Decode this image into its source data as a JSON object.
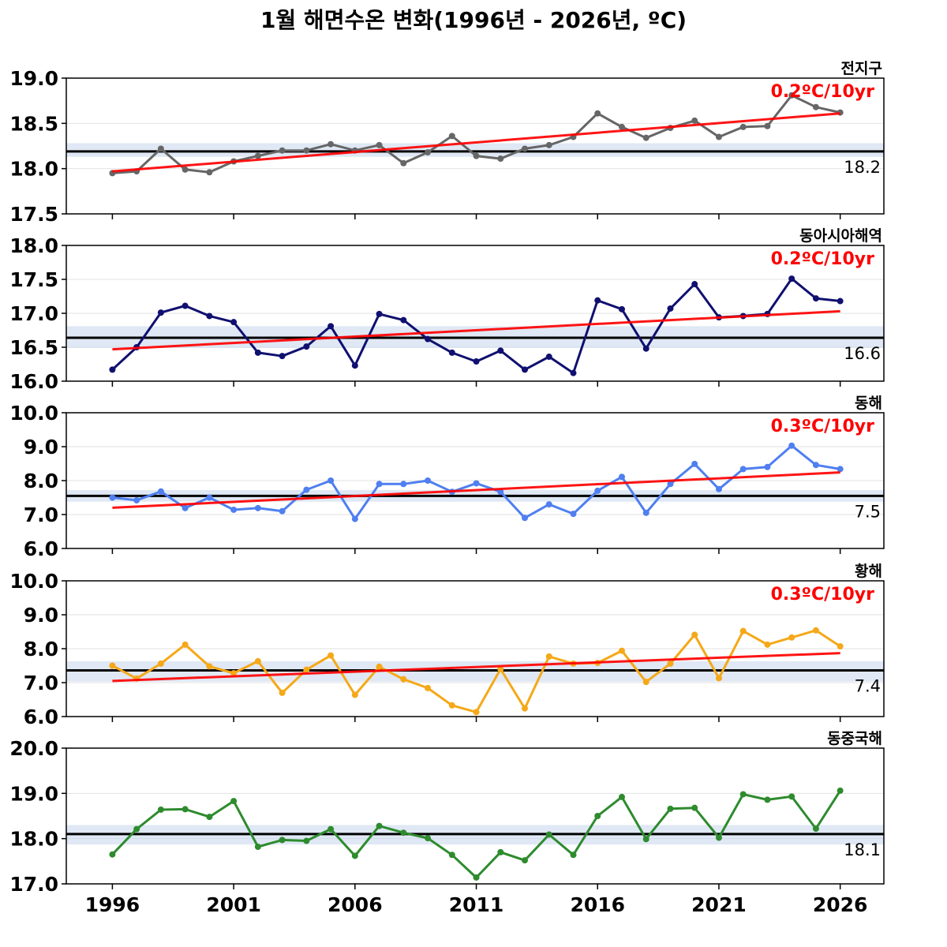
{
  "title": "1월 해면수온 변화(1996년 - 2026년, ºC)",
  "chart_data": [
    {
      "type": "line",
      "region": "전지구",
      "trend_label": "0.2ºC/10yr",
      "mean_label": "18.2",
      "mean": 18.19,
      "band": [
        18.13,
        18.28
      ],
      "ylim": [
        17.5,
        19.0
      ],
      "yticks": [
        "17.5",
        "18.0",
        "18.5",
        "19.0"
      ],
      "color": "#666666",
      "trend": [
        17.97,
        18.61
      ],
      "x": [
        1996,
        1997,
        1998,
        1999,
        2000,
        2001,
        2002,
        2003,
        2004,
        2005,
        2006,
        2007,
        2008,
        2009,
        2010,
        2011,
        2012,
        2013,
        2014,
        2015,
        2016,
        2017,
        2018,
        2019,
        2020,
        2021,
        2022,
        2023,
        2024,
        2025,
        2026
      ],
      "values": [
        17.95,
        17.97,
        18.22,
        17.99,
        17.96,
        18.08,
        18.14,
        18.2,
        18.2,
        18.27,
        18.2,
        18.26,
        18.06,
        18.18,
        18.36,
        18.14,
        18.11,
        18.22,
        18.26,
        18.35,
        18.61,
        18.46,
        18.34,
        18.45,
        18.53,
        18.35,
        18.46,
        18.47,
        18.81,
        18.68,
        18.62
      ]
    },
    {
      "type": "line",
      "region": "동아시아해역",
      "trend_label": "0.2ºC/10yr",
      "mean_label": "16.6",
      "mean": 16.64,
      "band": [
        16.49,
        16.81
      ],
      "ylim": [
        16.0,
        18.0
      ],
      "yticks": [
        "16.0",
        "16.5",
        "17.0",
        "17.5",
        "18.0"
      ],
      "color": "#101070",
      "trend": [
        16.47,
        17.03
      ],
      "x": [
        1996,
        1997,
        1998,
        1999,
        2000,
        2001,
        2002,
        2003,
        2004,
        2005,
        2006,
        2007,
        2008,
        2009,
        2010,
        2011,
        2012,
        2013,
        2014,
        2015,
        2016,
        2017,
        2018,
        2019,
        2020,
        2021,
        2022,
        2023,
        2024,
        2025,
        2026
      ],
      "values": [
        16.17,
        16.5,
        17.01,
        17.11,
        16.96,
        16.87,
        16.42,
        16.37,
        16.51,
        16.81,
        16.23,
        16.99,
        16.9,
        16.62,
        16.42,
        16.29,
        16.45,
        16.17,
        16.36,
        16.12,
        17.19,
        17.06,
        16.48,
        17.07,
        17.43,
        16.94,
        16.96,
        16.99,
        17.51,
        17.22,
        17.18
      ]
    },
    {
      "type": "line",
      "region": "동해",
      "trend_label": "0.3ºC/10yr",
      "mean_label": "7.5",
      "mean": 7.55,
      "band": [
        7.38,
        7.72
      ],
      "ylim": [
        6.0,
        10.0
      ],
      "yticks": [
        "6.0",
        "7.0",
        "8.0",
        "9.0",
        "10.0"
      ],
      "color": "#4f7ff0",
      "trend": [
        7.2,
        8.24
      ],
      "x": [
        1996,
        1997,
        1998,
        1999,
        2000,
        2001,
        2002,
        2003,
        2004,
        2005,
        2006,
        2007,
        2008,
        2009,
        2010,
        2011,
        2012,
        2013,
        2014,
        2015,
        2016,
        2017,
        2018,
        2019,
        2020,
        2021,
        2022,
        2023,
        2024,
        2025,
        2026
      ],
      "values": [
        7.5,
        7.42,
        7.68,
        7.19,
        7.5,
        7.14,
        7.19,
        7.1,
        7.73,
        8.0,
        6.87,
        7.9,
        7.9,
        8.0,
        7.67,
        7.92,
        7.67,
        6.9,
        7.3,
        7.02,
        7.7,
        8.11,
        7.05,
        7.9,
        8.49,
        7.75,
        8.34,
        8.4,
        9.03,
        8.46,
        8.34
      ]
    },
    {
      "type": "line",
      "region": "황해",
      "trend_label": "0.3ºC/10yr",
      "mean_label": "7.4",
      "mean": 7.36,
      "band": [
        7.03,
        7.63
      ],
      "ylim": [
        6.0,
        10.0
      ],
      "yticks": [
        "6.0",
        "7.0",
        "8.0",
        "9.0",
        "10.0"
      ],
      "color": "#f5a818",
      "trend": [
        7.05,
        7.87
      ],
      "x": [
        1996,
        1997,
        1998,
        1999,
        2000,
        2001,
        2002,
        2003,
        2004,
        2005,
        2006,
        2007,
        2008,
        2009,
        2010,
        2011,
        2012,
        2013,
        2014,
        2015,
        2016,
        2017,
        2018,
        2019,
        2020,
        2021,
        2022,
        2023,
        2024,
        2025,
        2026
      ],
      "values": [
        7.5,
        7.12,
        7.56,
        8.12,
        7.48,
        7.28,
        7.63,
        6.7,
        7.38,
        7.8,
        6.64,
        7.47,
        7.1,
        6.84,
        6.33,
        6.13,
        7.4,
        6.24,
        7.77,
        7.56,
        7.58,
        7.94,
        7.02,
        7.56,
        8.41,
        7.13,
        8.52,
        8.12,
        8.33,
        8.54,
        8.07
      ]
    },
    {
      "type": "line",
      "region": "동중국해",
      "trend_label": "",
      "mean_label": "18.1",
      "mean": 18.1,
      "band": [
        17.87,
        18.3
      ],
      "ylim": [
        17.0,
        20.0
      ],
      "yticks": [
        "17.0",
        "18.0",
        "19.0",
        "20.0"
      ],
      "color": "#2e8b2e",
      "trend": null,
      "x": [
        1996,
        1997,
        1998,
        1999,
        2000,
        2001,
        2002,
        2003,
        2004,
        2005,
        2006,
        2007,
        2008,
        2009,
        2010,
        2011,
        2012,
        2013,
        2014,
        2015,
        2016,
        2017,
        2018,
        2019,
        2020,
        2021,
        2022,
        2023,
        2024,
        2025,
        2026
      ],
      "values": [
        17.65,
        18.21,
        18.64,
        18.65,
        18.48,
        18.83,
        17.82,
        17.97,
        17.95,
        18.21,
        17.62,
        18.28,
        18.13,
        18.01,
        17.64,
        17.14,
        17.7,
        17.52,
        18.09,
        17.64,
        18.5,
        18.92,
        17.99,
        18.66,
        18.68,
        18.02,
        18.98,
        18.86,
        18.93,
        18.22,
        19.06
      ]
    }
  ],
  "x_ticks": [
    "1996",
    "2001",
    "2006",
    "2011",
    "2016",
    "2021",
    "2026"
  ]
}
